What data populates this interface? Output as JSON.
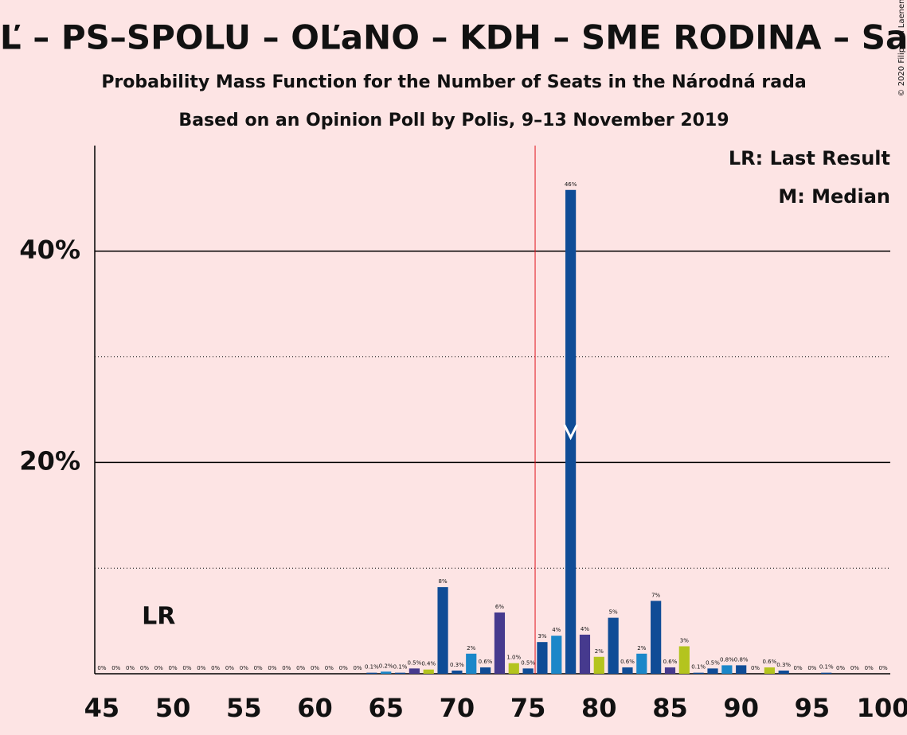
{
  "chart_data": {
    "type": "bar",
    "title": "ZĽ – PS–SPOLU – OĽaNO – KDH – SME RODINA – SaS",
    "subtitle": "Probability Mass Function for the Number of Seats in the Národná rada",
    "subtitle2": "Based on an Opinion Poll by Polis, 9–13 November 2019",
    "copyright": "© 2020 Filip van Laenen",
    "x": [
      45,
      46,
      47,
      48,
      49,
      50,
      51,
      52,
      53,
      54,
      55,
      56,
      57,
      58,
      59,
      60,
      61,
      62,
      63,
      64,
      65,
      66,
      67,
      68,
      69,
      70,
      71,
      72,
      73,
      74,
      75,
      76,
      77,
      78,
      79,
      80,
      81,
      82,
      83,
      84,
      85,
      86,
      87,
      88,
      89,
      90,
      91,
      92,
      93,
      94,
      95,
      96,
      97,
      98,
      99,
      100
    ],
    "values": [
      0,
      0,
      0,
      0,
      0,
      0,
      0,
      0,
      0,
      0,
      0,
      0,
      0,
      0,
      0,
      0,
      0,
      0,
      0,
      0.1,
      0.2,
      0.1,
      0.5,
      0.4,
      8.2,
      0.3,
      1.9,
      0.6,
      5.8,
      1.0,
      0.5,
      3.0,
      3.6,
      45.8,
      3.7,
      1.6,
      5.3,
      0.6,
      1.9,
      6.9,
      0.6,
      2.6,
      0.1,
      0.5,
      0.8,
      0.8,
      0,
      0.6,
      0.3,
      0,
      0,
      0.1,
      0,
      0,
      0,
      0
    ],
    "value_labels": [
      "0%",
      "0%",
      "0%",
      "0%",
      "0%",
      "0%",
      "0%",
      "0%",
      "0%",
      "0%",
      "0%",
      "0%",
      "0%",
      "0%",
      "0%",
      "0%",
      "0%",
      "0%",
      "0%",
      "0.1%",
      "0.2%",
      "0.1%",
      "0.5%",
      "0.4%",
      "8%",
      "0.3%",
      "2%",
      "0.6%",
      "6%",
      "1.0%",
      "0.5%",
      "3%",
      "4%",
      "46%",
      "4%",
      "2%",
      "5%",
      "0.6%",
      "2%",
      "7%",
      "0.6%",
      "3%",
      "0.1%",
      "0.5%",
      "0.8%",
      "0.8%",
      "0%",
      "0.6%",
      "0.3%",
      "0%",
      "0%",
      "0.1%",
      "0%",
      "0%",
      "0%",
      "0%"
    ],
    "colors": [
      "#0f4c96",
      "#0f4c96",
      "#1b87c9",
      "#0f4c96",
      "#463a8e",
      "#b4c41e",
      "#0f4c96",
      "#0f4c96",
      "#1b87c9",
      "#0f4c96",
      "#463a8e",
      "#b4c41e",
      "#0f4c96",
      "#0f4c96",
      "#1b87c9",
      "#0f4c96",
      "#463a8e",
      "#b4c41e",
      "#0f4c96",
      "#0f4c96",
      "#1b87c9",
      "#0f4c96",
      "#463a8e",
      "#b4c41e",
      "#0f4c96",
      "#0f4c96",
      "#1b87c9",
      "#0f4c96",
      "#463a8e",
      "#b4c41e",
      "#0f4c96",
      "#0f4c96",
      "#1b87c9",
      "#0f4c96",
      "#463a8e",
      "#b4c41e",
      "#0f4c96",
      "#0f4c96",
      "#1b87c9",
      "#0f4c96",
      "#463a8e",
      "#b4c41e",
      "#0f4c96",
      "#0f4c96",
      "#1b87c9",
      "#0f4c96",
      "#463a8e",
      "#b4c41e",
      "#0f4c96",
      "#0f4c96",
      "#1b87c9",
      "#0f4c96",
      "#463a8e",
      "#b4c41e",
      "#0f4c96",
      "#0f4c96"
    ],
    "xlim": [
      44.5,
      100.5
    ],
    "xticks": [
      45,
      50,
      55,
      60,
      65,
      70,
      75,
      80,
      85,
      90,
      95,
      100
    ],
    "ylim": [
      0,
      50
    ],
    "yticks": [
      {
        "value": 20,
        "label": "20%"
      },
      {
        "value": 40,
        "label": "40%"
      }
    ],
    "minor_yticks": [
      10,
      30
    ],
    "majority_line": 75.5,
    "majority_color": "#e0101a",
    "last_result": {
      "seat": 49,
      "label": "LR"
    },
    "median": 78,
    "legend": [
      "LR: Last Result",
      "M: Median"
    ]
  }
}
